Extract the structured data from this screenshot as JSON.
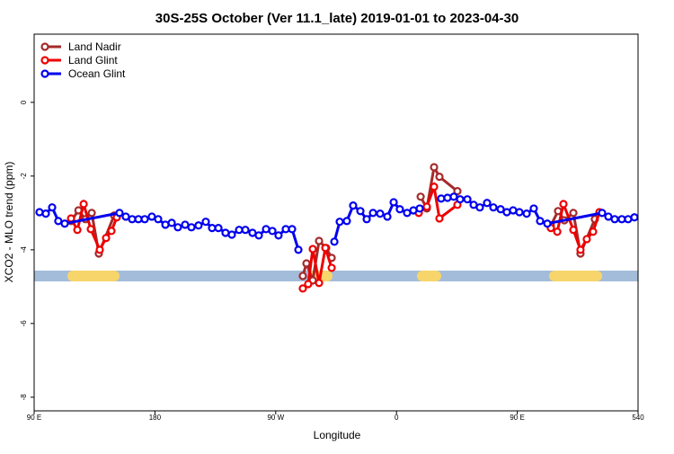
{
  "chart_data": {
    "type": "line",
    "title": "30S-25S October (Ver 11.1_late)   2019-01-01 to 2023-04-30",
    "x_label": "Longitude",
    "y_label": "XCO2 - MLO trend (ppm)",
    "xlim": [
      90,
      540
    ],
    "ylim": [
      -8.37,
      1.85
    ],
    "xticks": [
      {
        "value": 90,
        "label": "90 E"
      },
      180,
      {
        "value": 270,
        "label": "90 W"
      },
      {
        "value": 360,
        "label": "0"
      },
      {
        "value": 450,
        "label": "90 E"
      },
      540
    ],
    "yticks": [
      0,
      -2,
      -4,
      -6,
      -8
    ],
    "legend": "top-left",
    "series": [
      {
        "name": "Land Nadir",
        "color": "#a52a2a",
        "x": [
          117.5,
          123,
          128.2,
          132.9,
          138.2,
          149.6,
          null,
          290.2,
          292.9,
          297.6,
          302.3,
          307.6,
          311.7,
          null,
          378,
          382.6,
          388,
          392,
          405.4,
          null,
          475,
          480.4,
          485.1,
          491.8,
          497.1,
          507.8
        ],
        "values": [
          -3.22,
          -2.93,
          -3.17,
          -3.0,
          -4.1,
          -3.07,
          null,
          -4.71,
          -4.37,
          -4.83,
          -3.76,
          -3.95,
          -4.22,
          null,
          -2.56,
          -2.88,
          -1.76,
          -2.02,
          -2.41,
          null,
          -3.34,
          -2.95,
          -3.2,
          -3.0,
          -4.1,
          -3.17
        ]
      },
      {
        "name": "Land Glint",
        "color": "#ee0000",
        "x": [
          117.5,
          122.2,
          126.9,
          132.2,
          138.9,
          143.6,
          147.6,
          151.6,
          null,
          290.2,
          294.2,
          297.6,
          302.3,
          307,
          311.7,
          null,
          376.6,
          382.6,
          388,
          392,
          405.4,
          null,
          475,
          479.8,
          484.4,
          491.8,
          497.1,
          501.8,
          506.5,
          511.2
        ],
        "values": [
          -3.15,
          -3.46,
          -2.76,
          -3.44,
          -4.0,
          -3.68,
          -3.49,
          -3.12,
          null,
          -5.05,
          -4.93,
          -3.98,
          -4.9,
          -3.95,
          -4.49,
          null,
          -3.0,
          -2.83,
          -2.29,
          -3.15,
          -2.78,
          null,
          -3.41,
          -3.51,
          -2.76,
          -3.46,
          -4.0,
          -3.71,
          -3.51,
          -2.98
        ]
      },
      {
        "name": "Ocean Glint",
        "color": "#0000ee",
        "x": [
          94,
          98.7,
          103.4,
          108,
          112.8,
          153.6,
          158.3,
          163,
          167.7,
          172.4,
          177.7,
          182.4,
          187.8,
          192.5,
          197.1,
          202.5,
          207.2,
          212.5,
          217.9,
          222.6,
          227.3,
          232.6,
          237.3,
          242.7,
          247.4,
          252.7,
          257.4,
          262.8,
          267.5,
          272.1,
          277.5,
          282.2,
          286.9,
          null,
          313.7,
          317.7,
          323,
          327.7,
          333.1,
          337.8,
          342.5,
          347.8,
          353.2,
          357.9,
          362.5,
          367.9,
          372.6,
          377.3,
          null,
          393.3,
          398,
          402.7,
          407.4,
          412.8,
          417.5,
          422.1,
          427.5,
          432.2,
          437.6,
          442.2,
          446.9,
          451.6,
          457,
          462.3,
          467,
          472.4,
          513.2,
          517.9,
          522.6,
          527.9,
          532.6,
          537.3
        ],
        "values": [
          -2.98,
          -3.02,
          -2.85,
          -3.22,
          -3.29,
          -3.0,
          -3.1,
          -3.17,
          -3.17,
          -3.17,
          -3.1,
          -3.17,
          -3.32,
          -3.27,
          -3.39,
          -3.32,
          -3.39,
          -3.34,
          -3.24,
          -3.41,
          -3.41,
          -3.54,
          -3.59,
          -3.46,
          -3.46,
          -3.54,
          -3.61,
          -3.44,
          -3.49,
          -3.61,
          -3.44,
          -3.44,
          -4.0,
          null,
          -3.78,
          -3.24,
          -3.22,
          -2.8,
          -2.95,
          -3.17,
          -3.0,
          -3.02,
          -3.1,
          -2.71,
          -2.9,
          -3.0,
          -2.93,
          -2.88,
          null,
          -2.61,
          -2.59,
          -2.56,
          -2.63,
          -2.63,
          -2.78,
          -2.85,
          -2.73,
          -2.85,
          -2.9,
          -2.98,
          -2.93,
          -2.98,
          -3.02,
          -2.88,
          -3.22,
          -3.29,
          -3.0,
          -3.1,
          -3.17,
          -3.17,
          -3.17,
          -3.12
        ]
      }
    ]
  }
}
